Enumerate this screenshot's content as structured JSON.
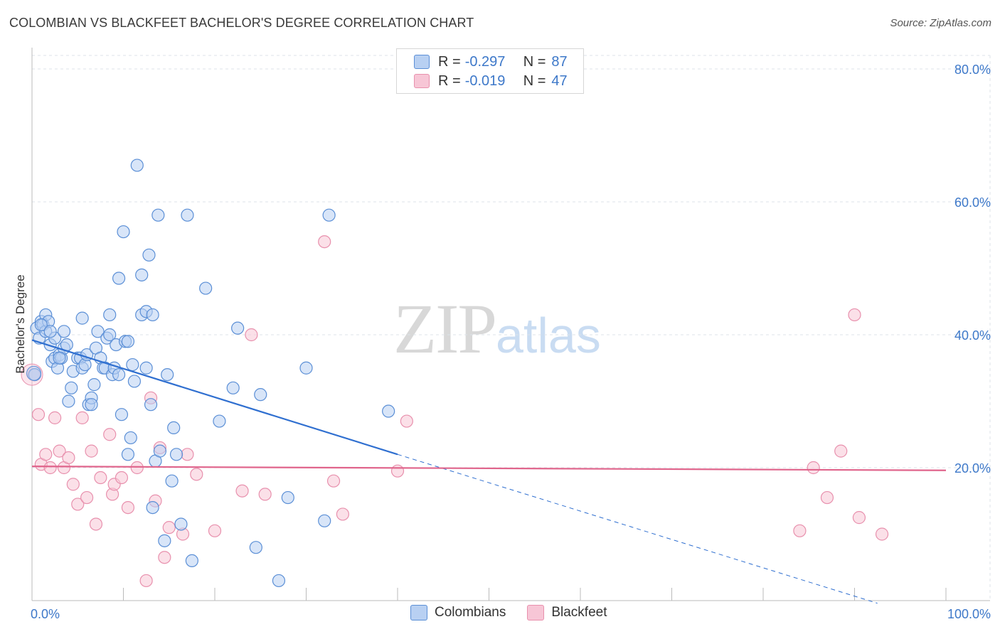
{
  "header": {
    "title": "COLOMBIAN VS BLACKFEET BACHELOR'S DEGREE CORRELATION CHART",
    "source": "Source: ZipAtlas.com"
  },
  "watermark": {
    "zip": "ZIP",
    "atlas": "atlas"
  },
  "legend": {
    "rows": [
      {
        "r_label": "R =",
        "r_value": "-0.297",
        "n_label": "N =",
        "n_value": "87"
      },
      {
        "r_label": "R =",
        "r_value": "-0.019",
        "n_label": "N =",
        "n_value": "47"
      }
    ]
  },
  "bottom_legend": {
    "series1": "Colombians",
    "series2": "Blackfeet"
  },
  "colors": {
    "colombians_fill": "#b8d0f2",
    "colombians_stroke": "#5b8fd6",
    "colombians_line": "#2f6fd0",
    "blackfeet_fill": "#f7c6d6",
    "blackfeet_stroke": "#e890ad",
    "blackfeet_line": "#e0658c",
    "tick": "#3d78c9",
    "grid": "#dde3ea"
  },
  "chart_data": {
    "type": "scatter",
    "title": "COLOMBIAN VS BLACKFEET BACHELOR'S DEGREE CORRELATION CHART",
    "xlabel": "",
    "ylabel": "Bachelor's Degree",
    "xlim": [
      0,
      100
    ],
    "ylim": [
      0,
      80
    ],
    "x_tick_labels": [
      "0.0%",
      "100.0%"
    ],
    "y_ticks": [
      20,
      40,
      60,
      80
    ],
    "y_tick_labels": [
      "20.0%",
      "40.0%",
      "60.0%",
      "80.0%"
    ],
    "series": [
      {
        "name": "Colombians",
        "points": [
          [
            0.5,
            41
          ],
          [
            0.8,
            39.5
          ],
          [
            1.0,
            42
          ],
          [
            1.2,
            41.5
          ],
          [
            1.5,
            40.5
          ],
          [
            1.5,
            43
          ],
          [
            1.8,
            42
          ],
          [
            2,
            38.5
          ],
          [
            2.2,
            36
          ],
          [
            2.5,
            39.5
          ],
          [
            2.5,
            36.5
          ],
          [
            2.8,
            35
          ],
          [
            3,
            37
          ],
          [
            3.2,
            36.5
          ],
          [
            3.5,
            38
          ],
          [
            3.5,
            40.5
          ],
          [
            3.8,
            38.5
          ],
          [
            4,
            30
          ],
          [
            4.3,
            32
          ],
          [
            4.5,
            34.5
          ],
          [
            5,
            36.5
          ],
          [
            5.3,
            36.5
          ],
          [
            5.5,
            35
          ],
          [
            5.5,
            42.5
          ],
          [
            5.8,
            35.5
          ],
          [
            6,
            37
          ],
          [
            6.2,
            29.5
          ],
          [
            6.5,
            30.5
          ],
          [
            6.5,
            29.5
          ],
          [
            6.8,
            32.5
          ],
          [
            7,
            38
          ],
          [
            7.2,
            40.5
          ],
          [
            7.5,
            36.5
          ],
          [
            7.8,
            35
          ],
          [
            8,
            35
          ],
          [
            8.2,
            39.5
          ],
          [
            8.5,
            40
          ],
          [
            8.5,
            43
          ],
          [
            8.8,
            34
          ],
          [
            9,
            35
          ],
          [
            9.2,
            38.5
          ],
          [
            9.5,
            34
          ],
          [
            9.5,
            48.5
          ],
          [
            9.8,
            28
          ],
          [
            10,
            55.5
          ],
          [
            10.2,
            39
          ],
          [
            10.5,
            39
          ],
          [
            10.5,
            22
          ],
          [
            10.8,
            24.5
          ],
          [
            11,
            35.5
          ],
          [
            11.2,
            33
          ],
          [
            11.5,
            65.5
          ],
          [
            12,
            49
          ],
          [
            12,
            43
          ],
          [
            12.5,
            43.5
          ],
          [
            12.5,
            35
          ],
          [
            12.8,
            52
          ],
          [
            13,
            29.5
          ],
          [
            13.2,
            43
          ],
          [
            13.2,
            14
          ],
          [
            13.5,
            21
          ],
          [
            13.8,
            58
          ],
          [
            14,
            22.5
          ],
          [
            14.5,
            9
          ],
          [
            14.8,
            34
          ],
          [
            15.3,
            18
          ],
          [
            15.5,
            26
          ],
          [
            15.8,
            22
          ],
          [
            16.3,
            11.5
          ],
          [
            17,
            58
          ],
          [
            17.5,
            6
          ],
          [
            19,
            47
          ],
          [
            22,
            32
          ],
          [
            22.5,
            41
          ],
          [
            24.5,
            8
          ],
          [
            25,
            31
          ],
          [
            27,
            3
          ],
          [
            28,
            15.5
          ],
          [
            30,
            35
          ],
          [
            32,
            12
          ],
          [
            32.5,
            58
          ],
          [
            39,
            28.5
          ],
          [
            0.3,
            34
          ],
          [
            1.0,
            41.5
          ],
          [
            2.0,
            40.5
          ],
          [
            3.0,
            36.5
          ],
          [
            20.5,
            27
          ]
        ]
      },
      {
        "name": "Blackfeet",
        "points": [
          [
            0.2,
            34
          ],
          [
            0.7,
            28
          ],
          [
            1.0,
            20.5
          ],
          [
            1.5,
            22
          ],
          [
            2,
            20
          ],
          [
            2.5,
            27.5
          ],
          [
            3,
            22.5
          ],
          [
            3.5,
            20
          ],
          [
            4,
            21.5
          ],
          [
            4.5,
            17.5
          ],
          [
            5,
            14.5
          ],
          [
            5.5,
            27.5
          ],
          [
            6,
            15.5
          ],
          [
            6.5,
            22.5
          ],
          [
            7,
            11.5
          ],
          [
            7.5,
            18.5
          ],
          [
            8.5,
            25
          ],
          [
            8.8,
            16
          ],
          [
            9,
            17.5
          ],
          [
            9.8,
            18.5
          ],
          [
            10.5,
            14
          ],
          [
            11.5,
            20
          ],
          [
            12.5,
            3
          ],
          [
            13,
            30.5
          ],
          [
            13.5,
            15
          ],
          [
            14,
            23
          ],
          [
            14.5,
            6.5
          ],
          [
            15,
            11
          ],
          [
            16.5,
            10
          ],
          [
            17,
            22
          ],
          [
            18,
            19
          ],
          [
            20,
            10.5
          ],
          [
            23,
            16.5
          ],
          [
            24,
            40
          ],
          [
            25.5,
            16
          ],
          [
            32,
            54
          ],
          [
            33,
            18
          ],
          [
            34,
            13
          ],
          [
            40,
            19.5
          ],
          [
            41,
            27
          ],
          [
            84,
            10.5
          ],
          [
            85.5,
            20
          ],
          [
            87,
            15.5
          ],
          [
            88.5,
            22.5
          ],
          [
            90,
            43
          ],
          [
            90.5,
            12.5
          ],
          [
            93,
            10
          ]
        ]
      }
    ],
    "trendlines": [
      {
        "series": "Colombians",
        "x0": 0,
        "y0": 39.2,
        "x1": 40,
        "y1": 22.0,
        "dashed_to_x": 100,
        "dashed_to_y": -3.6
      },
      {
        "series": "Blackfeet",
        "x0": 0,
        "y0": 20.2,
        "x1": 100,
        "y1": 19.6
      }
    ]
  }
}
